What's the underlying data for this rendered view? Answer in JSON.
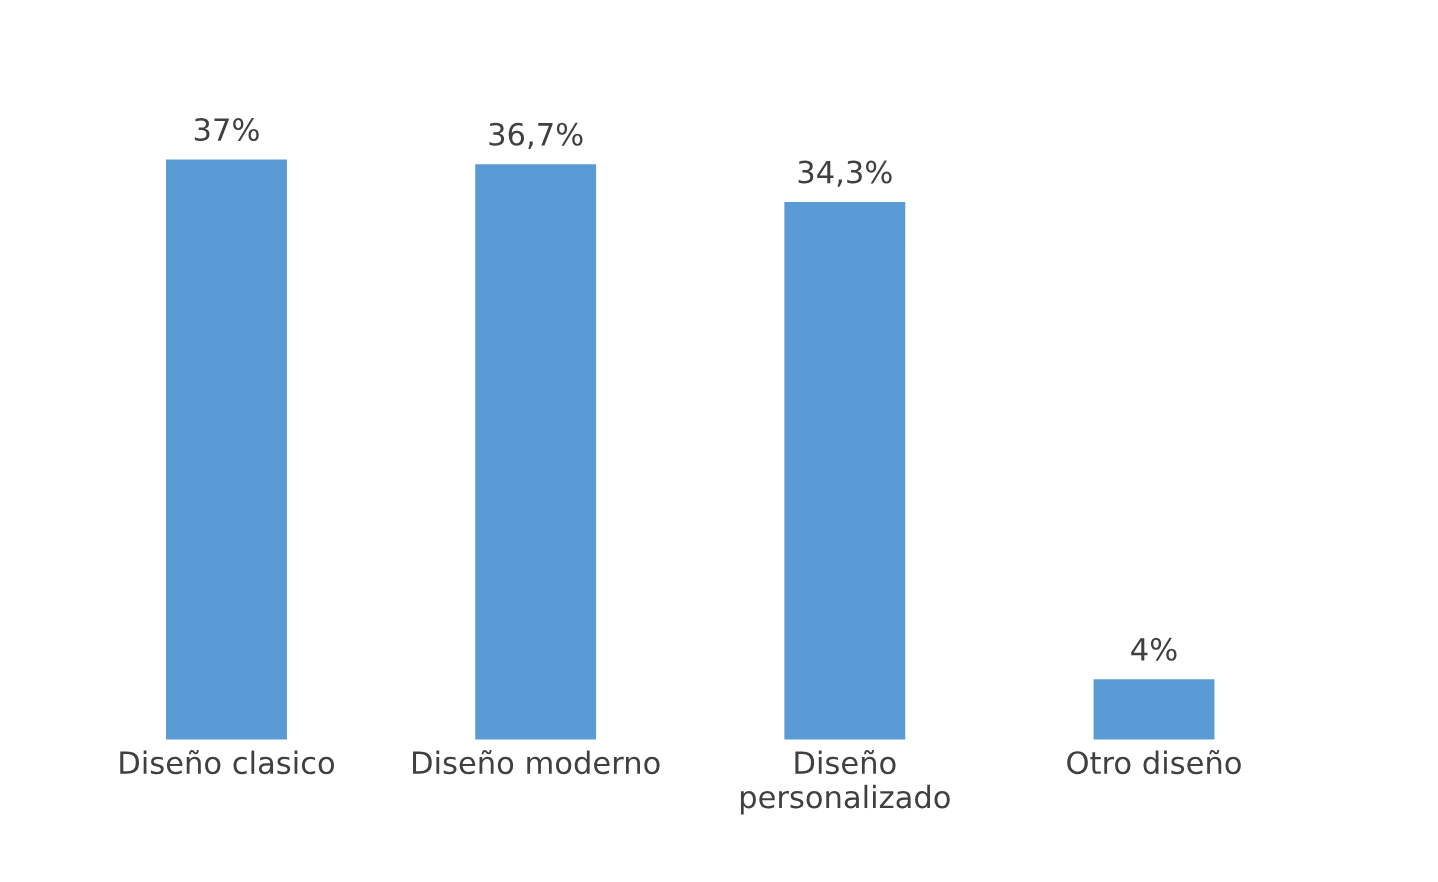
{
  "chart_data": {
    "type": "bar",
    "categories": [
      "Diseño clasico",
      "Diseño moderno",
      "Diseño\npersonalizado",
      "Otro diseño"
    ],
    "values": [
      37,
      36.7,
      34.3,
      4
    ],
    "value_labels": [
      "37%",
      "36,7%",
      "34,3%",
      "4%"
    ],
    "color": "#5b9bd5",
    "grid": false
  }
}
